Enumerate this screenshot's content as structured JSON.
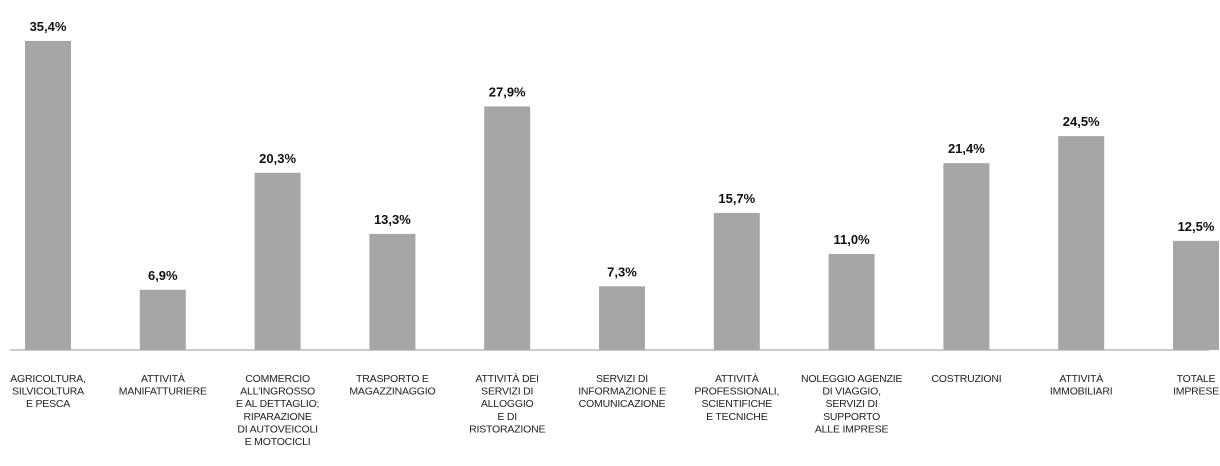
{
  "chart_data": {
    "type": "bar",
    "color": "#a6a6a6",
    "categories": [
      [
        "AGRICOLTURA,",
        "SILVICOLTURA",
        "E PESCA"
      ],
      [
        "ATTIVITÀ",
        "MANIFATTURIERE"
      ],
      [
        "COMMERCIO",
        "ALL'INGROSSO",
        "E AL DETTAGLIO;",
        "RIPARAZIONE",
        "DI AUTOVEICOLI",
        "E MOTOCICLI"
      ],
      [
        "TRASPORTO E",
        "MAGAZZINAGGIO"
      ],
      [
        "ATTIVITÀ DEI",
        "SERVIZI DI",
        "ALLOGGIO",
        "E DI",
        "RISTORAZIONE"
      ],
      [
        "SERVIZI DI",
        "INFORMAZIONE E",
        "COMUNICAZIONE"
      ],
      [
        "ATTIVITÀ",
        "PROFESSIONALI,",
        "SCIENTIFICHE",
        "E TECNICHE"
      ],
      [
        "NOLEGGIO AGENZIE",
        "DI VIAGGIO,",
        "SERVIZI DI",
        "SUPPORTO",
        "ALLE IMPRESE"
      ],
      [
        "COSTRUZIONI"
      ],
      [
        "ATTIVITÀ",
        "IMMOBILIARI"
      ],
      [
        "TOTALE",
        "IMPRESE"
      ]
    ],
    "values": [
      35.4,
      6.9,
      20.3,
      13.3,
      27.9,
      7.3,
      15.7,
      11.0,
      21.4,
      24.5,
      12.5
    ],
    "value_labels": [
      "35,4%",
      "6,9%",
      "20,3%",
      "13,3%",
      "27,9%",
      "7,3%",
      "15,7%",
      "11,0%",
      "21,4%",
      "24,5%",
      "12,5%"
    ]
  }
}
